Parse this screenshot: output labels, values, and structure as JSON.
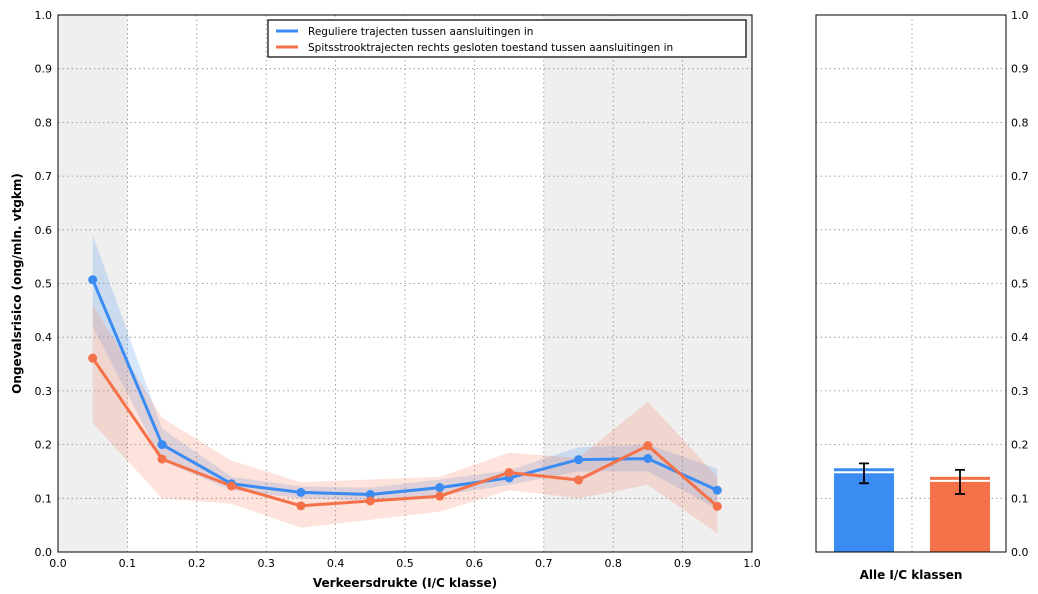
{
  "chart_data": [
    {
      "type": "line",
      "xlabel": "Verkeersdrukte (I/C klasse)",
      "ylabel": "Ongevalsrisico (ong/mln. vtgkm)",
      "xlim": [
        0,
        1
      ],
      "ylim": [
        0,
        1
      ],
      "xticks": [
        "0.0",
        "0.1",
        "0.2",
        "0.3",
        "0.4",
        "0.5",
        "0.6",
        "0.7",
        "0.8",
        "0.9",
        "1.0"
      ],
      "yticks": [
        "0.0",
        "0.1",
        "0.2",
        "0.3",
        "0.4",
        "0.5",
        "0.6",
        "0.7",
        "0.8",
        "0.9",
        "1.0"
      ],
      "grid": true,
      "legend_position": "top-center",
      "x": [
        0.05,
        0.15,
        0.25,
        0.35,
        0.45,
        0.55,
        0.65,
        0.75,
        0.85,
        0.95
      ],
      "series": [
        {
          "name": "Reguliere trajecten tussen aansluitingen in",
          "color": "#3b8cf2",
          "values": [
            0.507,
            0.2,
            0.127,
            0.111,
            0.107,
            0.12,
            0.138,
            0.172,
            0.174,
            0.115
          ],
          "band_low": [
            0.42,
            0.17,
            0.115,
            0.1,
            0.095,
            0.105,
            0.125,
            0.15,
            0.15,
            0.08
          ],
          "band_high": [
            0.59,
            0.23,
            0.14,
            0.122,
            0.12,
            0.135,
            0.152,
            0.195,
            0.2,
            0.155
          ]
        },
        {
          "name": "Spitsstrooktrajecten rechts gesloten toestand tussen aansluitingen in",
          "color": "#f4714a",
          "values": [
            0.361,
            0.173,
            0.123,
            0.086,
            0.095,
            0.104,
            0.148,
            0.134,
            0.198,
            0.085
          ],
          "band_low": [
            0.24,
            0.1,
            0.09,
            0.045,
            0.06,
            0.075,
            0.115,
            0.1,
            0.125,
            0.035
          ],
          "band_high": [
            0.46,
            0.25,
            0.17,
            0.13,
            0.135,
            0.14,
            0.185,
            0.175,
            0.28,
            0.14
          ]
        }
      ]
    },
    {
      "type": "bar",
      "xlabel": "Alle I/C klassen",
      "ylim": [
        0,
        1
      ],
      "yticks": [
        "0.0",
        "0.1",
        "0.2",
        "0.3",
        "0.4",
        "0.5",
        "0.6",
        "0.7",
        "0.8",
        "0.9",
        "1.0"
      ],
      "yticks_right_visible": [
        "0.0",
        "0.1",
        "0.2",
        "0.3",
        "0.4",
        "0.5",
        "0.6",
        "0.7",
        "0.8",
        "0.9",
        "1.0"
      ],
      "grid": true,
      "series": [
        {
          "name": "Reguliere trajecten tussen aansluitingen in",
          "color": "#3b8cf2",
          "value": 0.156,
          "err_low": 0.128,
          "err_high": 0.165
        },
        {
          "name": "Spitsstrooktrajecten rechts gesloten toestand tussen aansluitingen in",
          "color": "#f4714a",
          "value": 0.14,
          "err_low": 0.108,
          "err_high": 0.153
        }
      ]
    }
  ]
}
